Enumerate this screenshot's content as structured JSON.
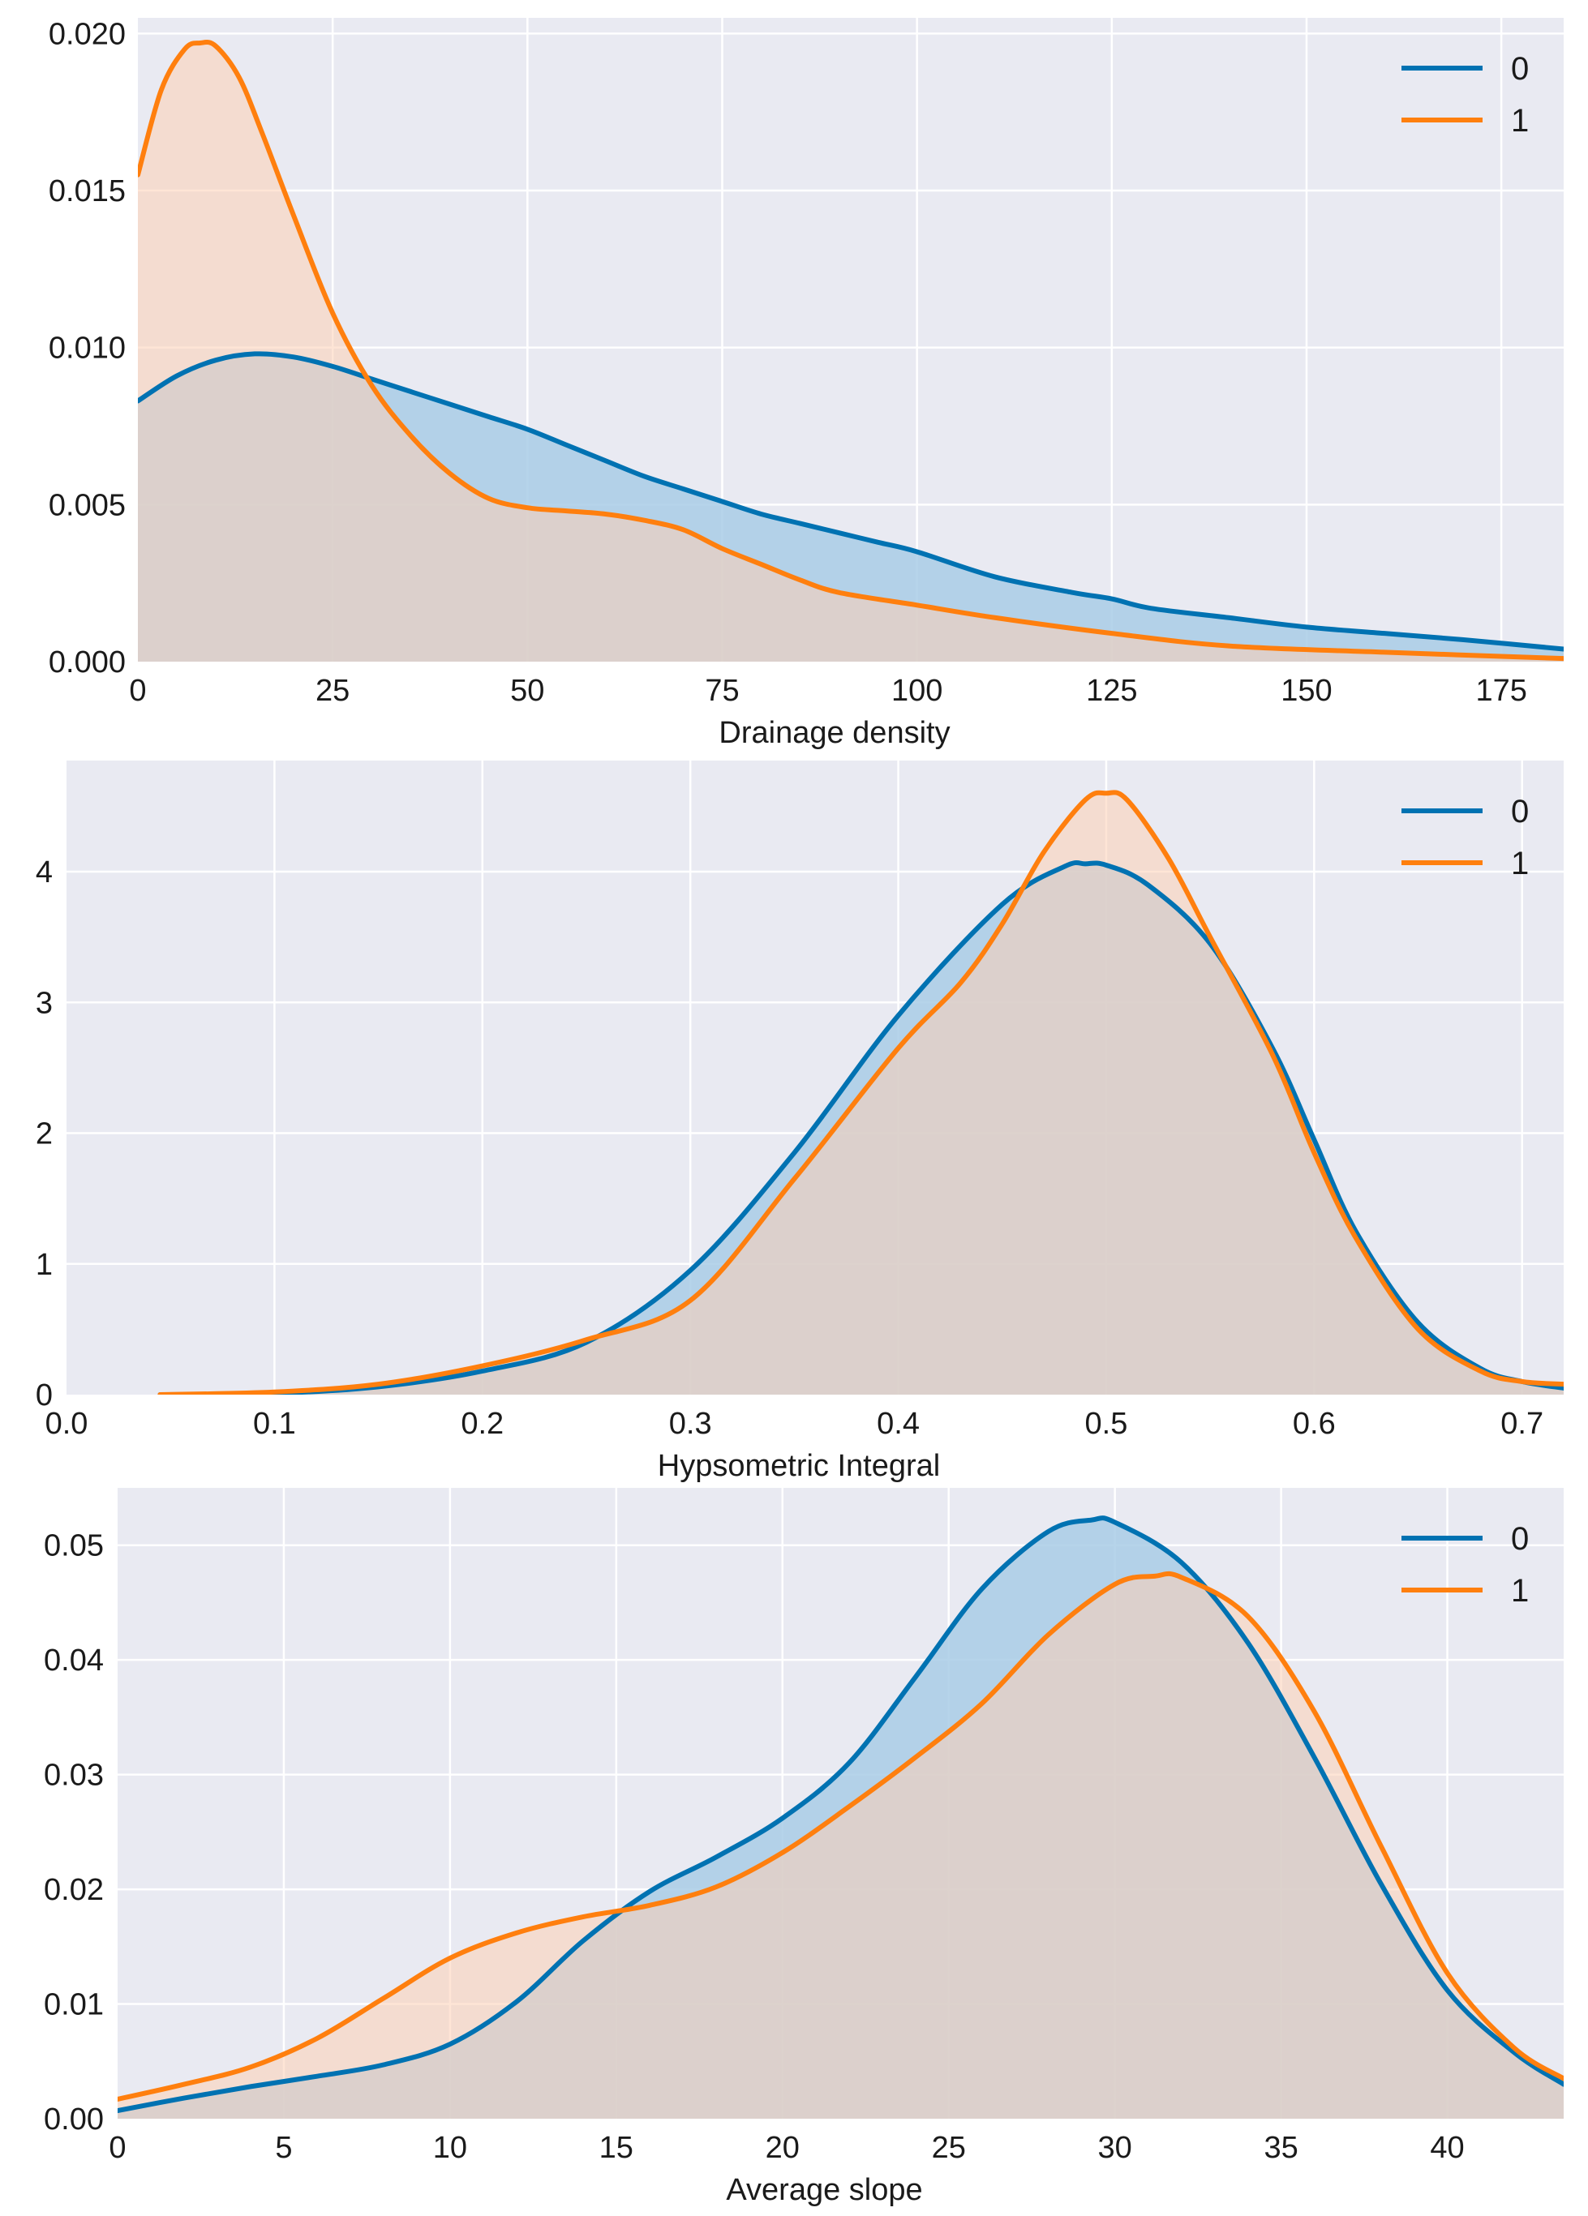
{
  "figure_title": "",
  "colors": {
    "background": "#e9eaf2",
    "grid": "#ffffff",
    "series_0": "#0072b2",
    "series_1": "#ff7f0e",
    "fill_0": "#a9cde6",
    "fill_1": "#fdd0b4"
  },
  "chart_data": [
    {
      "type": "area",
      "title": "",
      "xlabel": "Drainage density",
      "ylabel": "",
      "xlim": [
        0,
        183
      ],
      "ylim": [
        0,
        0.0205
      ],
      "xticks": [
        0,
        25,
        50,
        75,
        100,
        125,
        150,
        175
      ],
      "xtick_labels": [
        "0",
        "25",
        "50",
        "75",
        "100",
        "125",
        "150",
        "175"
      ],
      "yticks": [
        0,
        0.005,
        0.01,
        0.015,
        0.02
      ],
      "ytick_labels": [
        "0.000",
        "0.005",
        "0.010",
        "0.015",
        "0.020"
      ],
      "grid": true,
      "legend": {
        "position": "top-right",
        "entries": [
          "0",
          "1"
        ]
      },
      "series": [
        {
          "name": "0",
          "x": [
            0,
            5,
            10,
            15,
            20,
            25,
            30,
            35,
            40,
            45,
            50,
            55,
            60,
            65,
            70,
            75,
            80,
            85,
            90,
            95,
            100,
            110,
            120,
            125,
            130,
            140,
            150,
            160,
            170,
            183
          ],
          "y": [
            0.0083,
            0.0091,
            0.0096,
            0.0098,
            0.0097,
            0.0094,
            0.009,
            0.0086,
            0.0082,
            0.0078,
            0.0074,
            0.0069,
            0.0064,
            0.0059,
            0.0055,
            0.0051,
            0.0047,
            0.0044,
            0.0041,
            0.0038,
            0.0035,
            0.0027,
            0.0022,
            0.002,
            0.0017,
            0.0014,
            0.0011,
            0.0009,
            0.0007,
            0.0004
          ]
        },
        {
          "name": "1",
          "x": [
            0,
            3,
            6,
            8,
            10,
            13,
            16,
            20,
            25,
            30,
            35,
            40,
            45,
            50,
            55,
            60,
            65,
            70,
            75,
            80,
            85,
            90,
            100,
            110,
            125,
            140,
            160,
            183
          ],
          "y": [
            0.0155,
            0.0182,
            0.0195,
            0.0197,
            0.0196,
            0.0186,
            0.0168,
            0.0142,
            0.0111,
            0.0088,
            0.0072,
            0.006,
            0.0052,
            0.0049,
            0.0048,
            0.0047,
            0.0045,
            0.0042,
            0.0036,
            0.0031,
            0.0026,
            0.0022,
            0.0018,
            0.0014,
            0.0009,
            0.0005,
            0.0003,
            0.0001
          ]
        }
      ]
    },
    {
      "type": "area",
      "title": "",
      "xlabel": "Hypsometric Integral",
      "ylabel": "",
      "xlim": [
        0.0,
        0.72
      ],
      "ylim": [
        0,
        4.85
      ],
      "xticks": [
        0.0,
        0.1,
        0.2,
        0.3,
        0.4,
        0.5,
        0.6,
        0.7
      ],
      "xtick_labels": [
        "0.0",
        "0.1",
        "0.2",
        "0.3",
        "0.4",
        "0.5",
        "0.6",
        "0.7"
      ],
      "yticks": [
        0,
        1,
        2,
        3,
        4
      ],
      "ytick_labels": [
        "0",
        "1",
        "2",
        "3",
        "4"
      ],
      "grid": true,
      "legend": {
        "position": "top-right",
        "entries": [
          "0",
          "1"
        ]
      },
      "series": [
        {
          "name": "0",
          "x": [
            0.045,
            0.1,
            0.15,
            0.2,
            0.25,
            0.3,
            0.35,
            0.4,
            0.45,
            0.48,
            0.49,
            0.5,
            0.52,
            0.55,
            0.58,
            0.6,
            0.62,
            0.65,
            0.68,
            0.7,
            0.72
          ],
          "y": [
            0.0,
            0.01,
            0.06,
            0.18,
            0.4,
            0.95,
            1.85,
            2.9,
            3.75,
            4.04,
            4.06,
            4.05,
            3.9,
            3.45,
            2.65,
            1.95,
            1.25,
            0.55,
            0.2,
            0.1,
            0.05
          ]
        },
        {
          "name": "1",
          "x": [
            0.045,
            0.1,
            0.15,
            0.2,
            0.25,
            0.3,
            0.35,
            0.4,
            0.43,
            0.45,
            0.47,
            0.49,
            0.5,
            0.51,
            0.53,
            0.55,
            0.58,
            0.6,
            0.62,
            0.65,
            0.68,
            0.7,
            0.72
          ],
          "y": [
            0.0,
            0.02,
            0.08,
            0.22,
            0.42,
            0.72,
            1.65,
            2.65,
            3.15,
            3.6,
            4.15,
            4.55,
            4.6,
            4.55,
            4.1,
            3.5,
            2.6,
            1.85,
            1.2,
            0.5,
            0.18,
            0.1,
            0.08
          ]
        }
      ]
    },
    {
      "type": "area",
      "title": "",
      "xlabel": "Average slope",
      "ylabel": "",
      "xlim": [
        0,
        43.5
      ],
      "ylim": [
        0,
        0.055
      ],
      "xticks": [
        0,
        5,
        10,
        15,
        20,
        25,
        30,
        35,
        40
      ],
      "xtick_labels": [
        "0",
        "5",
        "10",
        "15",
        "20",
        "25",
        "30",
        "35",
        "40"
      ],
      "yticks": [
        0,
        0.01,
        0.02,
        0.03,
        0.04,
        0.05
      ],
      "ytick_labels": [
        "0.00",
        "0.01",
        "0.02",
        "0.03",
        "0.04",
        "0.05"
      ],
      "grid": true,
      "legend": {
        "position": "top-right",
        "entries": [
          "0",
          "1"
        ]
      },
      "series": [
        {
          "name": "0",
          "x": [
            0,
            2,
            4,
            6,
            8,
            10,
            12,
            14,
            16,
            18,
            20,
            22,
            24,
            26,
            28,
            29.3,
            30,
            32,
            34,
            36,
            38,
            40,
            42,
            43.5
          ],
          "y": [
            0.0007,
            0.0018,
            0.0028,
            0.0037,
            0.0047,
            0.0065,
            0.0102,
            0.0155,
            0.0198,
            0.0228,
            0.0262,
            0.031,
            0.0385,
            0.0462,
            0.0512,
            0.0522,
            0.052,
            0.0485,
            0.0415,
            0.0315,
            0.0205,
            0.0112,
            0.0058,
            0.003
          ]
        },
        {
          "name": "1",
          "x": [
            0,
            2,
            4,
            6,
            8,
            10,
            12,
            14,
            16,
            18,
            20,
            22,
            24,
            26,
            28,
            30,
            31.2,
            32,
            34,
            36,
            38,
            40,
            42,
            43.5
          ],
          "y": [
            0.0017,
            0.003,
            0.0045,
            0.007,
            0.0105,
            0.014,
            0.0162,
            0.0176,
            0.0186,
            0.0202,
            0.0232,
            0.0272,
            0.0315,
            0.0362,
            0.0422,
            0.0466,
            0.0473,
            0.0472,
            0.0438,
            0.0355,
            0.0238,
            0.0127,
            0.0062,
            0.0035
          ]
        }
      ]
    }
  ]
}
